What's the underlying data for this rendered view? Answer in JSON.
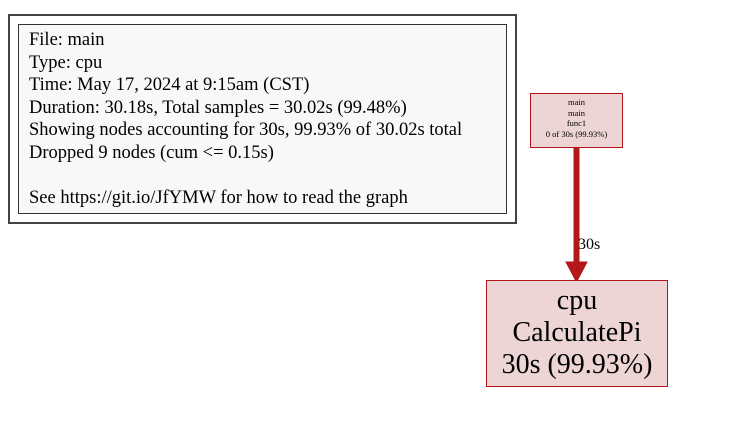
{
  "legend": {
    "lines": [
      "File: main",
      "Type: cpu",
      "Time: May 17, 2024 at 9:15am (CST)",
      "Duration: 30.18s, Total samples = 30.02s (99.48%)",
      "Showing nodes accounting for 30s, 99.93% of 30.02s total",
      "Dropped 9 nodes (cum <= 0.15s)"
    ],
    "help": "See https://git.io/JfYMW for how to read the graph"
  },
  "nodes": {
    "caller": {
      "package": "main",
      "function": "main",
      "closure": "func1",
      "stats": "0 of 30s (99.93%)"
    },
    "callee": {
      "package": "cpu",
      "function": "CalculatePi",
      "stats": "30s (99.93%)"
    }
  },
  "edge": {
    "label": "30s",
    "color": "#b2181b"
  },
  "colors": {
    "node_fill": "#edd5d5",
    "node_border": "#b2181b",
    "legend_fill": "#f8f8f8"
  }
}
